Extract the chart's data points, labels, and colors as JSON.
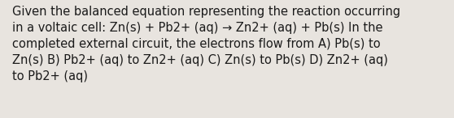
{
  "text": "Given the balanced equation representing the reaction occurring\nin a voltaic cell: Zn(s) + Pb2+ (aq) → Zn2+ (aq) + Pb(s) In the\ncompleted external circuit, the electrons flow from A) Pb(s) to\nZn(s) B) Pb2+ (aq) to Zn2+ (aq) C) Zn(s) to Pb(s) D) Zn2+ (aq)\nto Pb2+ (aq)",
  "background_color": "#e8e4df",
  "text_color": "#1a1a1a",
  "font_size": 10.5,
  "fig_width": 5.58,
  "fig_height": 1.46,
  "dpi": 100
}
